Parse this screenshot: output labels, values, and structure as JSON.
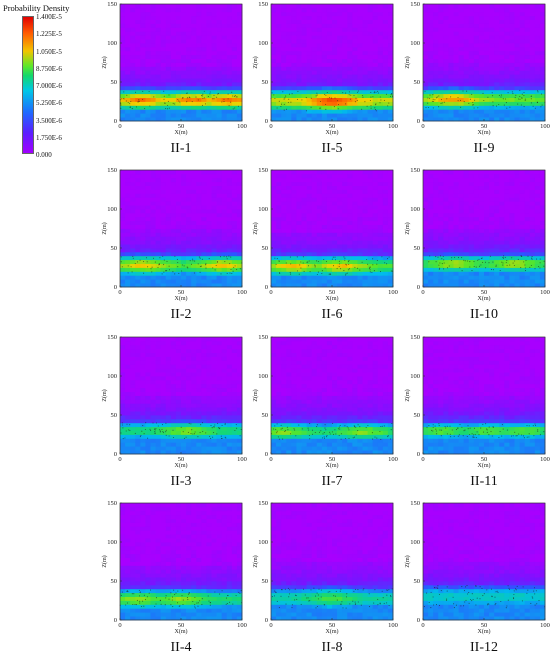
{
  "legend": {
    "title": "Probability Density",
    "ticks": [
      "1.400E-5",
      "1.225E-5",
      "1.050E-5",
      "8.750E-6",
      "7.000E-6",
      "5.250E-6",
      "3.500E-6",
      "1.750E-6",
      "0.000"
    ]
  },
  "chart_data": {
    "type": "heatmap",
    "colorbar": {
      "title": "Probability Density",
      "min": 0,
      "max": 1.4e-05,
      "colormap": "purple-blue-cyan-green-yellow-red"
    },
    "panels": [
      {
        "name": "II-1",
        "x_ticks": [
          "0",
          "50",
          "100"
        ],
        "y_ticks": [
          "0",
          "50",
          "100",
          "150"
        ],
        "xlabel": "X(m)",
        "ylabel": "Z(m)",
        "band_center_z": 27,
        "band_halfwidth_z": 9,
        "peak_density": 1.3e-05,
        "hot_spots_x": [
          18,
          60,
          88
        ]
      },
      {
        "name": "II-5",
        "x_ticks": [
          "0",
          "50",
          "100"
        ],
        "y_ticks": [
          "0",
          "50",
          "100",
          "150"
        ],
        "xlabel": "X(m)",
        "ylabel": "Z(m)",
        "band_center_z": 26,
        "band_halfwidth_z": 10,
        "peak_density": 1.4e-05,
        "hot_spots_x": [
          50
        ]
      },
      {
        "name": "II-9",
        "x_ticks": [
          "0",
          "50",
          "100"
        ],
        "y_ticks": [
          "0",
          "50",
          "100",
          "150"
        ],
        "xlabel": "X(m)",
        "ylabel": "Z(m)",
        "band_center_z": 28,
        "band_halfwidth_z": 9,
        "peak_density": 1.25e-05,
        "hot_spots_x": [
          25
        ]
      },
      {
        "name": "II-2",
        "x_ticks": [
          "0",
          "50",
          "100"
        ],
        "y_ticks": [
          "0",
          "50",
          "100",
          "150"
        ],
        "xlabel": "X(m)",
        "ylabel": "Z(m)",
        "band_center_z": 28,
        "band_halfwidth_z": 9,
        "peak_density": 1.15e-05,
        "hot_spots_x": [
          20,
          85
        ]
      },
      {
        "name": "II-6",
        "x_ticks": [
          "0",
          "50",
          "100"
        ],
        "y_ticks": [
          "0",
          "50",
          "100",
          "150"
        ],
        "xlabel": "X(m)",
        "ylabel": "Z(m)",
        "band_center_z": 27,
        "band_halfwidth_z": 9,
        "peak_density": 1.15e-05,
        "hot_spots_x": [
          18,
          58
        ]
      },
      {
        "name": "II-10",
        "x_ticks": [
          "0",
          "50",
          "100"
        ],
        "y_ticks": [
          "0",
          "50",
          "100",
          "150"
        ],
        "xlabel": "X(m)",
        "ylabel": "Z(m)",
        "band_center_z": 30,
        "band_halfwidth_z": 8,
        "peak_density": 1.05e-05,
        "hot_spots_x": [
          25,
          75
        ]
      },
      {
        "name": "II-3",
        "x_ticks": [
          "0",
          "50",
          "100"
        ],
        "y_ticks": [
          "0",
          "50",
          "100",
          "150"
        ],
        "xlabel": "X(m)",
        "ylabel": "Z(m)",
        "band_center_z": 30,
        "band_halfwidth_z": 8,
        "peak_density": 1e-05,
        "hot_spots_x": [
          55
        ]
      },
      {
        "name": "II-7",
        "x_ticks": [
          "0",
          "50",
          "100"
        ],
        "y_ticks": [
          "0",
          "50",
          "100",
          "150"
        ],
        "xlabel": "X(m)",
        "ylabel": "Z(m)",
        "band_center_z": 29,
        "band_halfwidth_z": 8,
        "peak_density": 1e-05,
        "hot_spots_x": [
          10,
          75
        ]
      },
      {
        "name": "II-11",
        "x_ticks": [
          "0",
          "50",
          "100"
        ],
        "y_ticks": [
          "0",
          "50",
          "100",
          "150"
        ],
        "xlabel": "X(m)",
        "ylabel": "Z(m)",
        "band_center_z": 30,
        "band_halfwidth_z": 7,
        "peak_density": 9.5e-06,
        "hot_spots_x": [
          15,
          55,
          82
        ]
      },
      {
        "name": "II-4",
        "x_ticks": [
          "0",
          "50",
          "100"
        ],
        "y_ticks": [
          "0",
          "50",
          "100",
          "150"
        ],
        "xlabel": "X(m)",
        "ylabel": "Z(m)",
        "band_center_z": 27,
        "band_halfwidth_z": 9,
        "peak_density": 1e-05,
        "hot_spots_x": [
          15,
          50
        ]
      },
      {
        "name": "II-8",
        "x_ticks": [
          "0",
          "50",
          "100"
        ],
        "y_ticks": [
          "0",
          "50",
          "100",
          "150"
        ],
        "xlabel": "X(m)",
        "ylabel": "Z(m)",
        "band_center_z": 28,
        "band_halfwidth_z": 10,
        "peak_density": 8.8e-06,
        "hot_spots_x": [
          50
        ]
      },
      {
        "name": "II-12",
        "x_ticks": [
          "0",
          "50",
          "100"
        ],
        "y_ticks": [
          "0",
          "50",
          "100",
          "150"
        ],
        "xlabel": "X(m)",
        "ylabel": "Z(m)",
        "band_center_z": 30,
        "band_halfwidth_z": 11,
        "peak_density": 8e-06,
        "hot_spots_x": []
      }
    ]
  }
}
